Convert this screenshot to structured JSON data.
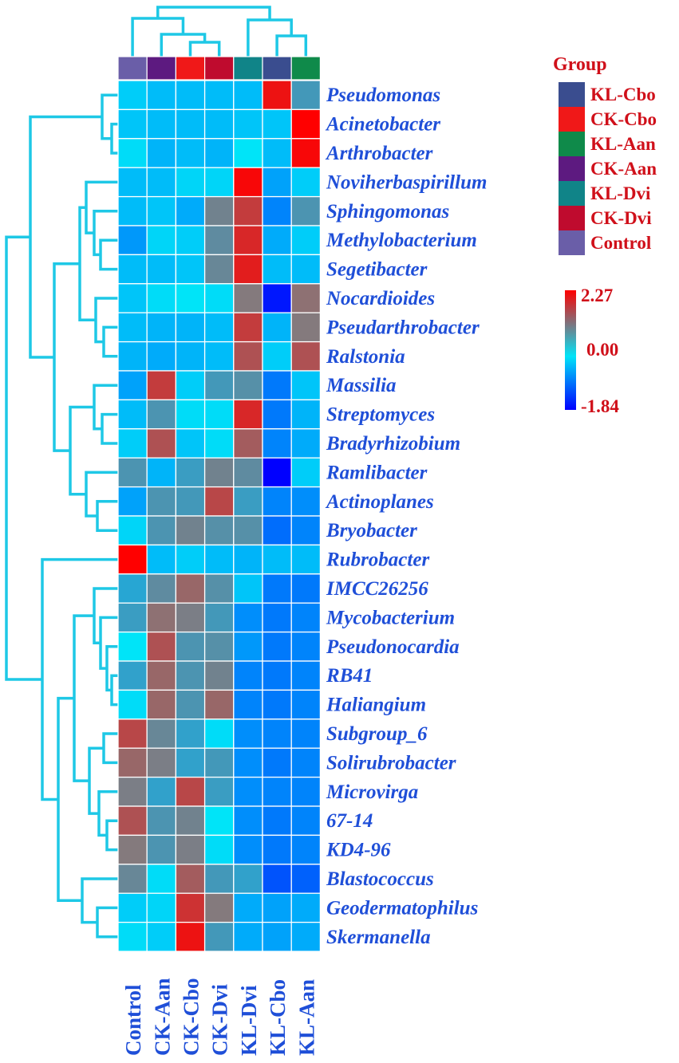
{
  "chart_data": {
    "type": "heatmap",
    "title": "",
    "columns": [
      "Control",
      "CK-Aan",
      "CK-Cbo",
      "CK-Dvi",
      "KL-Dvi",
      "KL-Cbo",
      "KL-Aan"
    ],
    "rows": [
      "Pseudomonas",
      "Acinetobacter",
      "Arthrobacter",
      "Noviherbaspirillum",
      "Sphingomonas",
      "Methylobacterium",
      "Segetibacter",
      "Nocardioides",
      "Pseudarthrobacter",
      "Ralstonia",
      "Massilia",
      "Streptomyces",
      "Bradyrhizobium",
      "Ramlibacter",
      "Actinoplanes",
      "Bryobacter",
      "Rubrobacter",
      "IMCC26256",
      "Mycobacterium",
      "Pseudonocardia",
      "RB41",
      "Haliangium",
      "Subgroup_6",
      "Solirubrobacter",
      "Microvirga",
      "67-14",
      "KD4-96",
      "Blastococcus",
      "Geodermatophilus",
      "Skermanella"
    ],
    "values": [
      [
        -0.3,
        -0.5,
        -0.5,
        -0.5,
        -0.5,
        2.1,
        0.4
      ],
      [
        -0.4,
        -0.5,
        -0.5,
        -0.5,
        -0.4,
        -0.4,
        2.27
      ],
      [
        -0.1,
        -0.6,
        -0.5,
        -0.6,
        0.0,
        -0.5,
        2.2
      ],
      [
        -0.5,
        -0.5,
        -0.2,
        -0.2,
        2.2,
        -0.8,
        -0.3
      ],
      [
        -0.5,
        -0.4,
        -0.7,
        0.9,
        1.7,
        -1.1,
        0.5
      ],
      [
        -0.9,
        -0.2,
        -0.3,
        0.7,
        1.9,
        -0.7,
        -0.3
      ],
      [
        -0.5,
        -0.5,
        -0.4,
        0.8,
        2.0,
        -0.5,
        -0.5
      ],
      [
        -0.4,
        -0.1,
        0.0,
        -0.1,
        1.1,
        -1.8,
        1.2
      ],
      [
        -0.5,
        -0.6,
        -0.6,
        -0.5,
        1.7,
        -0.6,
        1.1
      ],
      [
        -0.6,
        -0.7,
        -0.6,
        -0.5,
        1.5,
        -0.3,
        1.5
      ],
      [
        -0.8,
        1.7,
        -0.3,
        0.4,
        0.6,
        -1.2,
        -0.4
      ],
      [
        -0.5,
        0.5,
        -0.1,
        -0.1,
        1.9,
        -1.2,
        -0.6
      ],
      [
        -0.3,
        1.5,
        -0.4,
        -0.1,
        1.4,
        -1.1,
        -0.7
      ],
      [
        0.5,
        -0.6,
        0.3,
        0.9,
        0.7,
        -1.84,
        -0.3
      ],
      [
        -0.8,
        0.5,
        0.4,
        1.6,
        0.3,
        -1.1,
        -1.0
      ],
      [
        -0.2,
        0.5,
        0.9,
        0.6,
        0.6,
        -1.3,
        -1.1
      ],
      [
        2.27,
        -0.5,
        -0.3,
        -0.5,
        -0.6,
        -0.5,
        -0.5
      ],
      [
        0.1,
        0.7,
        1.3,
        0.6,
        -0.4,
        -1.2,
        -1.2
      ],
      [
        0.3,
        1.2,
        1.0,
        0.4,
        -1.0,
        -1.2,
        -1.1
      ],
      [
        0.0,
        1.5,
        0.5,
        0.6,
        -0.9,
        -1.2,
        -1.1
      ],
      [
        0.2,
        1.3,
        0.5,
        0.9,
        -1.1,
        -1.2,
        -1.1
      ],
      [
        -0.1,
        1.3,
        0.5,
        1.3,
        -1.1,
        -1.2,
        -1.1
      ],
      [
        1.6,
        0.8,
        0.2,
        -0.1,
        -1.0,
        -1.1,
        -1.1
      ],
      [
        1.3,
        1.0,
        0.2,
        0.4,
        -1.0,
        -1.2,
        -1.1
      ],
      [
        1.0,
        0.2,
        1.6,
        0.3,
        -1.0,
        -1.1,
        -1.1
      ],
      [
        1.5,
        0.5,
        0.9,
        0.0,
        -1.0,
        -1.2,
        -1.1
      ],
      [
        1.1,
        0.5,
        1.0,
        -0.1,
        -1.0,
        -1.2,
        -1.1
      ],
      [
        0.8,
        -0.1,
        1.4,
        0.4,
        0.2,
        -1.5,
        -1.4
      ],
      [
        -0.3,
        -0.2,
        1.8,
        1.1,
        -0.7,
        -0.8,
        -0.7
      ],
      [
        -0.1,
        -0.3,
        2.1,
        0.4,
        -0.7,
        -0.8,
        -0.7
      ]
    ],
    "group_legend": {
      "title": "Group",
      "items": [
        {
          "label": "KL-Cbo",
          "color": "#3a4d8f"
        },
        {
          "label": "CK-Cbo",
          "color": "#f01818"
        },
        {
          "label": "KL-Aan",
          "color": "#0f8a4a"
        },
        {
          "label": "CK-Aan",
          "color": "#5d1a80"
        },
        {
          "label": "KL-Dvi",
          "color": "#108488"
        },
        {
          "label": "CK-Dvi",
          "color": "#bf0b2e"
        },
        {
          "label": "Control",
          "color": "#6a5ea8"
        }
      ]
    },
    "column_groups": [
      "Control",
      "CK-Aan",
      "CK-Cbo",
      "CK-Dvi",
      "KL-Dvi",
      "KL-Cbo",
      "KL-Aan"
    ],
    "color_scale": {
      "min": -1.84,
      "mid": 0.0,
      "max": 2.27,
      "min_label": "-1.84",
      "mid_label": "0.00",
      "max_label": "2.27",
      "colors": [
        "#0000ff",
        "#00e4f8",
        "#ff0000"
      ]
    },
    "row_dendrogram": "left",
    "column_dendrogram": "top",
    "legend_position": "right"
  }
}
